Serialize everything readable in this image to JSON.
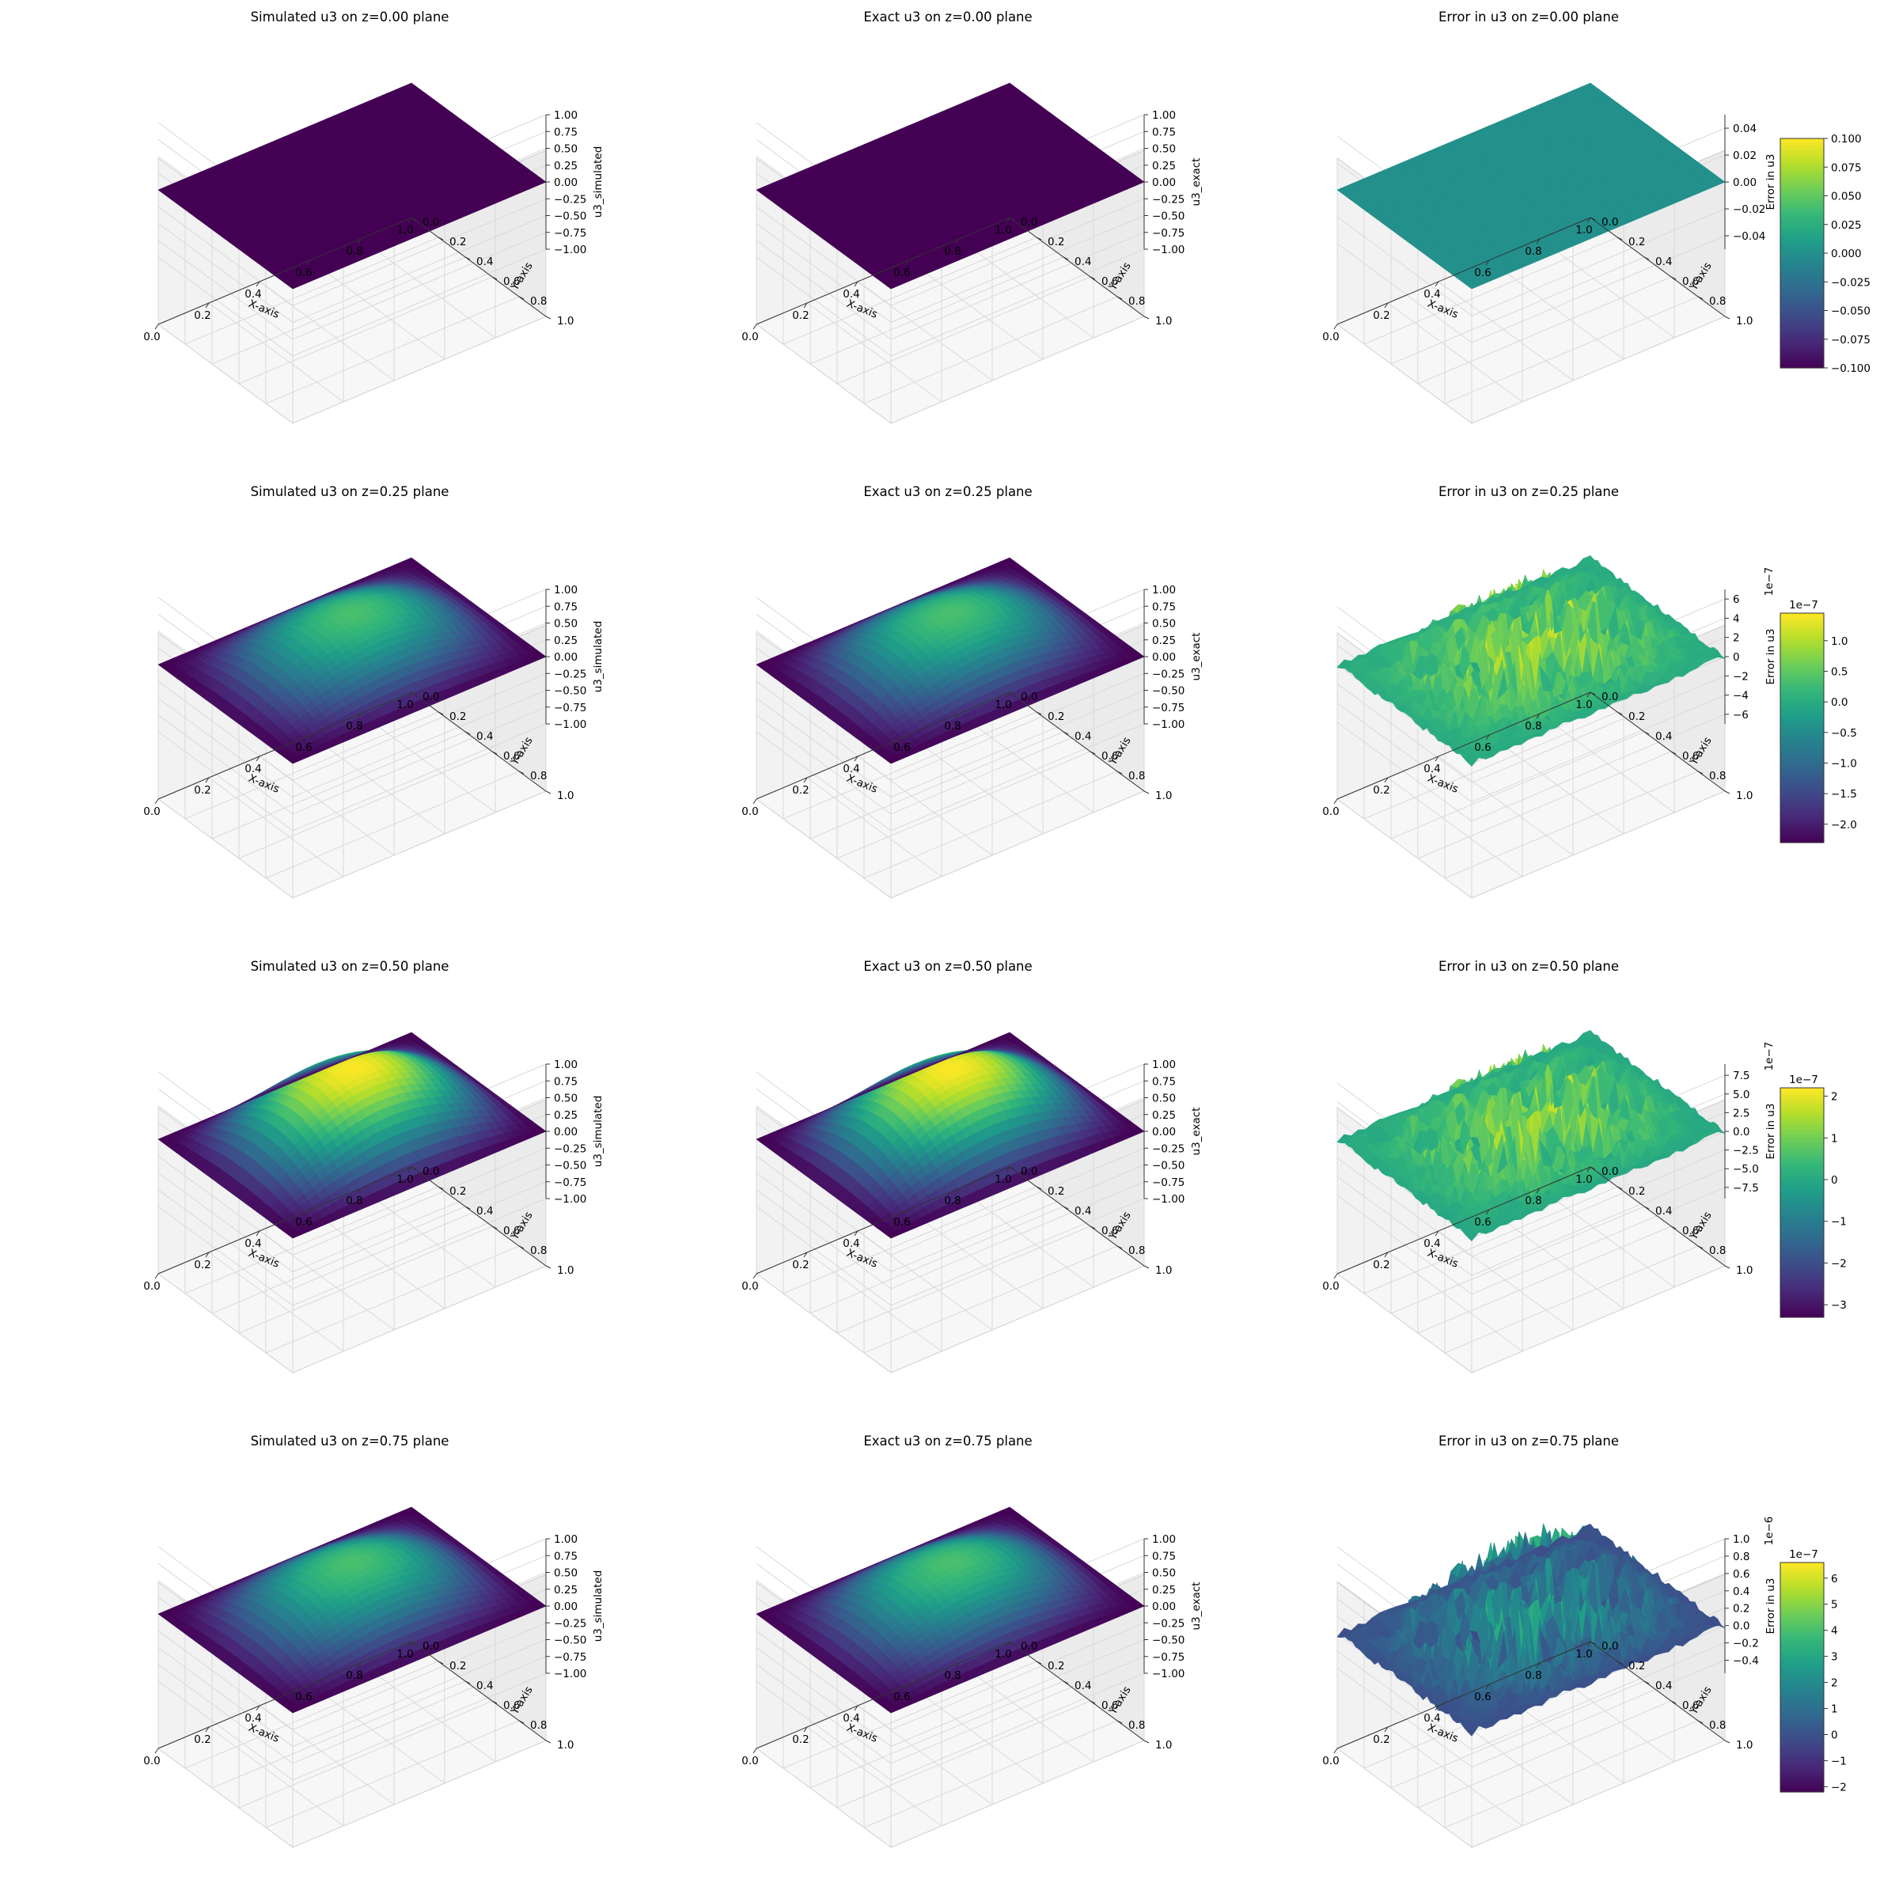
{
  "chart_data": [
    {
      "type": "surface3d",
      "title": "Simulated u3 on z=0.00 plane",
      "xlabel": "X-axis",
      "ylabel": "Y-axis",
      "zlabel": "u3_simulated",
      "xlim": [
        0,
        1
      ],
      "ylim": [
        0,
        1
      ],
      "zlim": [
        -1,
        1
      ],
      "x_ticks": [
        "0.0",
        "0.2",
        "0.4",
        "0.6",
        "0.8",
        "1.0"
      ],
      "y_ticks": [
        "0.0",
        "0.2",
        "0.4",
        "0.6",
        "0.8",
        "1.0"
      ],
      "z_ticks": [
        "−1.00",
        "−0.75",
        "−0.50",
        "−0.25",
        "0.00",
        "0.25",
        "0.50",
        "0.75",
        "1.00"
      ],
      "z_values": [
        -1,
        -0.75,
        -0.5,
        -0.25,
        0,
        0.25,
        0.5,
        0.75,
        1
      ],
      "peak": 0.0,
      "kind": "smooth"
    },
    {
      "type": "surface3d",
      "title": "Exact u3 on z=0.00 plane",
      "xlabel": "X-axis",
      "ylabel": "Y-axis",
      "zlabel": "u3_exact",
      "xlim": [
        0,
        1
      ],
      "ylim": [
        0,
        1
      ],
      "zlim": [
        -1,
        1
      ],
      "x_ticks": [
        "0.0",
        "0.2",
        "0.4",
        "0.6",
        "0.8",
        "1.0"
      ],
      "y_ticks": [
        "0.0",
        "0.2",
        "0.4",
        "0.6",
        "0.8",
        "1.0"
      ],
      "z_ticks": [
        "−1.00",
        "−0.75",
        "−0.50",
        "−0.25",
        "0.00",
        "0.25",
        "0.50",
        "0.75",
        "1.00"
      ],
      "z_values": [
        -1,
        -0.75,
        -0.5,
        -0.25,
        0,
        0.25,
        0.5,
        0.75,
        1
      ],
      "peak": 0.0,
      "kind": "smooth"
    },
    {
      "type": "surface3d",
      "title": "Error in u3 on z=0.00 plane",
      "xlabel": "X-axis",
      "ylabel": "Y-axis",
      "zlabel": "Error in u3",
      "xlim": [
        0,
        1
      ],
      "ylim": [
        0,
        1
      ],
      "zlim": [
        -0.05,
        0.05
      ],
      "x_ticks": [
        "0.0",
        "0.2",
        "0.4",
        "0.6",
        "0.8",
        "1.0"
      ],
      "y_ticks": [
        "0.0",
        "0.2",
        "0.4",
        "0.6",
        "0.8",
        "1.0"
      ],
      "z_ticks": [
        "−0.04",
        "−0.02",
        "0.00",
        "0.02",
        "0.04"
      ],
      "z_values": [
        -0.04,
        -0.02,
        0,
        0.02,
        0.04
      ],
      "kind": "flat",
      "colorbar": {
        "ticks": [
          "−0.100",
          "−0.075",
          "−0.050",
          "−0.025",
          "0.000",
          "0.025",
          "0.050",
          "0.075",
          "0.100"
        ],
        "values": [
          -0.1,
          -0.075,
          -0.05,
          -0.025,
          0,
          0.025,
          0.05,
          0.075,
          0.1
        ],
        "range": [
          -0.1,
          0.1
        ],
        "offset": ""
      }
    },
    {
      "type": "surface3d",
      "title": "Simulated u3 on z=0.25 plane",
      "xlabel": "X-axis",
      "ylabel": "Y-axis",
      "zlabel": "u3_simulated",
      "xlim": [
        0,
        1
      ],
      "ylim": [
        0,
        1
      ],
      "zlim": [
        -1,
        1
      ],
      "x_ticks": [
        "0.0",
        "0.2",
        "0.4",
        "0.6",
        "0.8",
        "1.0"
      ],
      "y_ticks": [
        "0.0",
        "0.2",
        "0.4",
        "0.6",
        "0.8",
        "1.0"
      ],
      "z_ticks": [
        "−1.00",
        "−0.75",
        "−0.50",
        "−0.25",
        "0.00",
        "0.25",
        "0.50",
        "0.75",
        "1.00"
      ],
      "z_values": [
        -1,
        -0.75,
        -0.5,
        -0.25,
        0,
        0.25,
        0.5,
        0.75,
        1
      ],
      "peak": 0.707,
      "kind": "smooth"
    },
    {
      "type": "surface3d",
      "title": "Exact u3 on z=0.25 plane",
      "xlabel": "X-axis",
      "ylabel": "Y-axis",
      "zlabel": "u3_exact",
      "xlim": [
        0,
        1
      ],
      "ylim": [
        0,
        1
      ],
      "zlim": [
        -1,
        1
      ],
      "x_ticks": [
        "0.0",
        "0.2",
        "0.4",
        "0.6",
        "0.8",
        "1.0"
      ],
      "y_ticks": [
        "0.0",
        "0.2",
        "0.4",
        "0.6",
        "0.8",
        "1.0"
      ],
      "z_ticks": [
        "−1.00",
        "−0.75",
        "−0.50",
        "−0.25",
        "0.00",
        "0.25",
        "0.50",
        "0.75",
        "1.00"
      ],
      "z_values": [
        -1,
        -0.75,
        -0.5,
        -0.25,
        0,
        0.25,
        0.5,
        0.75,
        1
      ],
      "peak": 0.707,
      "kind": "smooth"
    },
    {
      "type": "surface3d",
      "title": "Error in u3 on z=0.25 plane",
      "xlabel": "X-axis",
      "ylabel": "Y-axis",
      "zlabel": "Error in u3",
      "xlim": [
        0,
        1
      ],
      "ylim": [
        0,
        1
      ],
      "zlim": [
        -7,
        7
      ],
      "z_offset": "1e−7",
      "x_ticks": [
        "0.0",
        "0.2",
        "0.4",
        "0.6",
        "0.8",
        "1.0"
      ],
      "y_ticks": [
        "0.0",
        "0.2",
        "0.4",
        "0.6",
        "0.8",
        "1.0"
      ],
      "z_ticks": [
        "−6",
        "−4",
        "−2",
        "0",
        "2",
        "4",
        "6"
      ],
      "z_values": [
        -6,
        -4,
        -2,
        0,
        2,
        4,
        6
      ],
      "kind": "noisy",
      "colorbar": {
        "ticks": [
          "−2.0",
          "−1.5",
          "−1.0",
          "−0.5",
          "0.0",
          "0.5",
          "1.0"
        ],
        "values": [
          -2,
          -1.5,
          -1,
          -0.5,
          0,
          0.5,
          1
        ],
        "range": [
          -2.3,
          1.45
        ],
        "offset": "1e−7"
      }
    },
    {
      "type": "surface3d",
      "title": "Simulated u3 on z=0.50 plane",
      "xlabel": "X-axis",
      "ylabel": "Y-axis",
      "zlabel": "u3_simulated",
      "xlim": [
        0,
        1
      ],
      "ylim": [
        0,
        1
      ],
      "zlim": [
        -1,
        1
      ],
      "x_ticks": [
        "0.0",
        "0.2",
        "0.4",
        "0.6",
        "0.8",
        "1.0"
      ],
      "y_ticks": [
        "0.0",
        "0.2",
        "0.4",
        "0.6",
        "0.8",
        "1.0"
      ],
      "z_ticks": [
        "−1.00",
        "−0.75",
        "−0.50",
        "−0.25",
        "0.00",
        "0.25",
        "0.50",
        "0.75",
        "1.00"
      ],
      "z_values": [
        -1,
        -0.75,
        -0.5,
        -0.25,
        0,
        0.25,
        0.5,
        0.75,
        1
      ],
      "peak": 1.0,
      "kind": "smooth"
    },
    {
      "type": "surface3d",
      "title": "Exact u3 on z=0.50 plane",
      "xlabel": "X-axis",
      "ylabel": "Y-axis",
      "zlabel": "u3_exact",
      "xlim": [
        0,
        1
      ],
      "ylim": [
        0,
        1
      ],
      "zlim": [
        -1,
        1
      ],
      "x_ticks": [
        "0.0",
        "0.2",
        "0.4",
        "0.6",
        "0.8",
        "1.0"
      ],
      "y_ticks": [
        "0.0",
        "0.2",
        "0.4",
        "0.6",
        "0.8",
        "1.0"
      ],
      "z_ticks": [
        "−1.00",
        "−0.75",
        "−0.50",
        "−0.25",
        "0.00",
        "0.25",
        "0.50",
        "0.75",
        "1.00"
      ],
      "z_values": [
        -1,
        -0.75,
        -0.5,
        -0.25,
        0,
        0.25,
        0.5,
        0.75,
        1
      ],
      "peak": 1.0,
      "kind": "smooth"
    },
    {
      "type": "surface3d",
      "title": "Error in u3 on z=0.50 plane",
      "xlabel": "X-axis",
      "ylabel": "Y-axis",
      "zlabel": "Error in u3",
      "xlim": [
        0,
        1
      ],
      "ylim": [
        0,
        1
      ],
      "zlim": [
        -9,
        9
      ],
      "z_offset": "1e−7",
      "x_ticks": [
        "0.0",
        "0.2",
        "0.4",
        "0.6",
        "0.8",
        "1.0"
      ],
      "y_ticks": [
        "0.0",
        "0.2",
        "0.4",
        "0.6",
        "0.8",
        "1.0"
      ],
      "z_ticks": [
        "−7.5",
        "−5.0",
        "−2.5",
        "0.0",
        "2.5",
        "5.0",
        "7.5"
      ],
      "z_values": [
        -7.5,
        -5,
        -2.5,
        0,
        2.5,
        5,
        7.5
      ],
      "kind": "noisy",
      "colorbar": {
        "ticks": [
          "−3",
          "−2",
          "−1",
          "0",
          "1",
          "2"
        ],
        "values": [
          -3,
          -2,
          -1,
          0,
          1,
          2
        ],
        "range": [
          -3.3,
          2.2
        ],
        "offset": "1e−7"
      }
    },
    {
      "type": "surface3d",
      "title": "Simulated u3 on z=0.75 plane",
      "xlabel": "X-axis",
      "ylabel": "Y-axis",
      "zlabel": "u3_simulated",
      "xlim": [
        0,
        1
      ],
      "ylim": [
        0,
        1
      ],
      "zlim": [
        -1,
        1
      ],
      "x_ticks": [
        "0.0",
        "0.2",
        "0.4",
        "0.6",
        "0.8",
        "1.0"
      ],
      "y_ticks": [
        "0.0",
        "0.2",
        "0.4",
        "0.6",
        "0.8",
        "1.0"
      ],
      "z_ticks": [
        "−1.00",
        "−0.75",
        "−0.50",
        "−0.25",
        "0.00",
        "0.25",
        "0.50",
        "0.75",
        "1.00"
      ],
      "z_values": [
        -1,
        -0.75,
        -0.5,
        -0.25,
        0,
        0.25,
        0.5,
        0.75,
        1
      ],
      "peak": 0.707,
      "kind": "smooth"
    },
    {
      "type": "surface3d",
      "title": "Exact u3 on z=0.75 plane",
      "xlabel": "X-axis",
      "ylabel": "Y-axis",
      "zlabel": "u3_exact",
      "xlim": [
        0,
        1
      ],
      "ylim": [
        0,
        1
      ],
      "zlim": [
        -1,
        1
      ],
      "x_ticks": [
        "0.0",
        "0.2",
        "0.4",
        "0.6",
        "0.8",
        "1.0"
      ],
      "y_ticks": [
        "0.0",
        "0.2",
        "0.4",
        "0.6",
        "0.8",
        "1.0"
      ],
      "z_ticks": [
        "−1.00",
        "−0.75",
        "−0.50",
        "−0.25",
        "0.00",
        "0.25",
        "0.50",
        "0.75",
        "1.00"
      ],
      "z_values": [
        -1,
        -0.75,
        -0.5,
        -0.25,
        0,
        0.25,
        0.5,
        0.75,
        1
      ],
      "peak": 0.707,
      "kind": "smooth"
    },
    {
      "type": "surface3d",
      "title": "Error in u3 on z=0.75 plane",
      "xlabel": "X-axis",
      "ylabel": "Y-axis",
      "zlabel": "Error in u3",
      "xlim": [
        0,
        1
      ],
      "ylim": [
        0,
        1
      ],
      "zlim": [
        -0.55,
        1.0
      ],
      "z_offset": "1e−6",
      "x_ticks": [
        "0.0",
        "0.2",
        "0.4",
        "0.6",
        "0.8",
        "1.0"
      ],
      "y_ticks": [
        "0.0",
        "0.2",
        "0.4",
        "0.6",
        "0.8",
        "1.0"
      ],
      "z_ticks": [
        "−0.4",
        "−0.2",
        "0.0",
        "0.2",
        "0.4",
        "0.6",
        "0.8",
        "1.0"
      ],
      "z_values": [
        -0.4,
        -0.2,
        0,
        0.2,
        0.4,
        0.6,
        0.8,
        1.0
      ],
      "kind": "noisy",
      "colorbar": {
        "ticks": [
          "−2",
          "−1",
          "0",
          "1",
          "2",
          "3",
          "4",
          "5",
          "6"
        ],
        "values": [
          -2,
          -1,
          0,
          1,
          2,
          3,
          4,
          5,
          6
        ],
        "range": [
          -2.2,
          6.6
        ],
        "offset": "1e−7"
      }
    }
  ],
  "colormap": [
    "#440154",
    "#482878",
    "#3e4a89",
    "#31688e",
    "#26828e",
    "#1f9e89",
    "#35b779",
    "#6ece58",
    "#b5de2b",
    "#fde725"
  ]
}
